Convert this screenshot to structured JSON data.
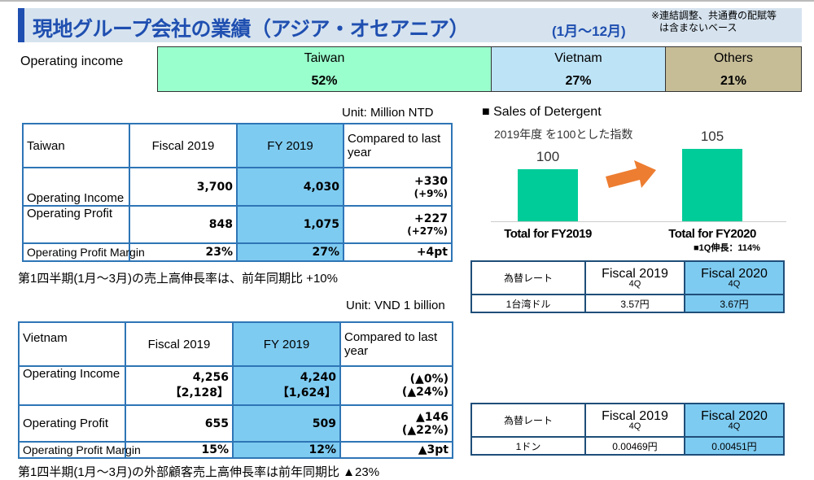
{
  "header": {
    "title": "現地グループ会社の業績（アジア・オセアニア）",
    "period": "(1月～12月)",
    "note_line1": "※連結調整、共通費の配賦等",
    "note_line2": "は含まないベース"
  },
  "share": {
    "label": "Operating income",
    "segments": [
      {
        "name": "Taiwan",
        "value": "52%",
        "percent": 52,
        "color": "#99ffcc"
      },
      {
        "name": "Vietnam",
        "value": "27%",
        "percent": 27,
        "color": "#bde3f6"
      },
      {
        "name": "Others",
        "value": "21%",
        "percent": 21,
        "color": "#c6bd97"
      }
    ]
  },
  "taiwan": {
    "unit": "Unit: Million NTD",
    "headers": [
      "Taiwan",
      "Fiscal 2019",
      "FY 2019",
      "Compared to last year"
    ],
    "rows": [
      {
        "label": "Operating Income",
        "a": "3,700",
        "b": "4,030",
        "c1": "+330",
        "c2": "(+9%)"
      },
      {
        "label": "Operating Profit",
        "a": "848",
        "b": "1,075",
        "c1": "+227",
        "c2": "(+27%)"
      },
      {
        "label": "Operating Profit Margin",
        "a": "23%",
        "b": "27%",
        "c1": "+4pt",
        "c2": ""
      }
    ],
    "note": "第1四半期(1月～3月)の売上高伸長率は、前年同期比 +10%"
  },
  "vietnam": {
    "unit": "Unit: VND 1 billion",
    "headers": [
      "Vietnam",
      "Fiscal 2019",
      "FY 2019",
      "Compared to last year"
    ],
    "rows": [
      {
        "label": "Operating Income",
        "a": "4,256",
        "a2": "【2,128】",
        "b": "4,240",
        "b2": "【1,624】",
        "c1": "(▲0%)",
        "c2": "(▲24%)"
      },
      {
        "label": "Operating Profit",
        "a": "655",
        "b": "509",
        "c1": "▲146",
        "c2": "(▲22%)"
      },
      {
        "label": "Operating Profit Margin",
        "a": "15%",
        "b": "12%",
        "c1": "▲3pt"
      }
    ],
    "note": "第1四半期(1月～3月)の外部顧客売上高伸長率は前年同期比 ▲23%"
  },
  "chart_data": {
    "type": "bar",
    "title": "■ Sales of Detergent",
    "subtitle": "2019年度 を100とした指数",
    "categories": [
      "Total for FY2019",
      "Total for FY2020"
    ],
    "values": [
      100,
      105
    ],
    "annotation": "■1Q伸長：114%",
    "color": "#00cc99"
  },
  "rates": [
    {
      "label": "為替レート",
      "h1": "Fiscal 2019",
      "h2": "Fiscal 2020",
      "q": "4Q",
      "unit": "1台湾ドル",
      "v1": "3.57円",
      "v2": "3.67円"
    },
    {
      "label": "為替レート",
      "h1": "Fiscal 2019",
      "h2": "Fiscal 2020",
      "q": "4Q",
      "unit": "1ドン",
      "v1": "0.00469円",
      "v2": "0.00451円"
    }
  ]
}
